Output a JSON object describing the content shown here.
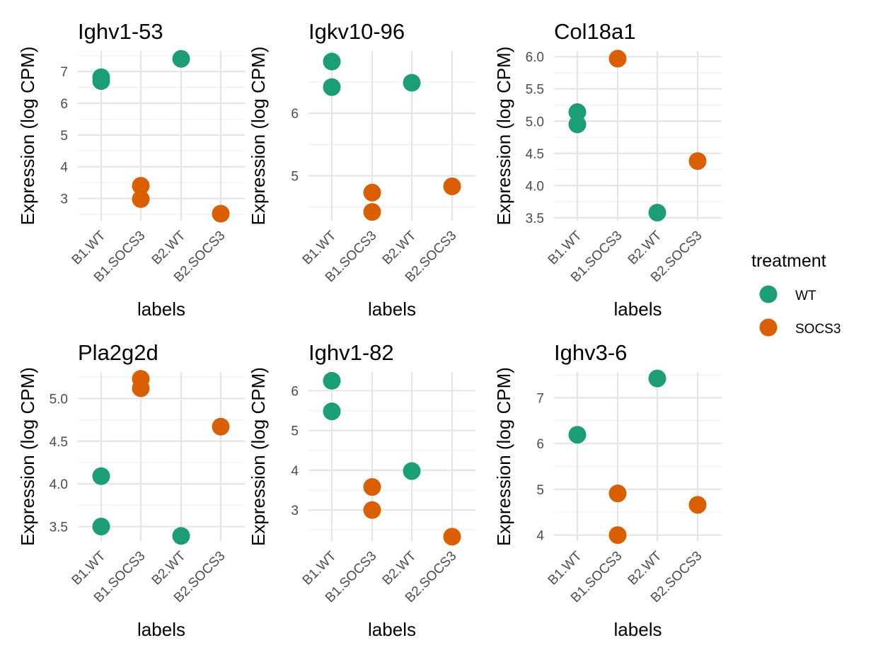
{
  "chart_data": [
    {
      "type": "scatter",
      "title": "Ighv1-53",
      "xlabel": "labels",
      "ylabel": "Expression (log CPM)",
      "categories": [
        "B1.WT",
        "B1.SOCS3",
        "B2.WT",
        "B2.SOCS3"
      ],
      "ylim": [
        2.3,
        7.65
      ],
      "yticks": [
        3,
        4,
        5,
        6,
        7
      ],
      "yticklabels": [
        "3",
        "4",
        "5",
        "6",
        "7"
      ],
      "points": [
        {
          "x": "B1.WT",
          "y": 6.82,
          "treatment": "WT"
        },
        {
          "x": "B1.WT",
          "y": 6.7,
          "treatment": "WT"
        },
        {
          "x": "B1.SOCS3",
          "y": 3.4,
          "treatment": "SOCS3"
        },
        {
          "x": "B1.SOCS3",
          "y": 2.98,
          "treatment": "SOCS3"
        },
        {
          "x": "B2.WT",
          "y": 7.4,
          "treatment": "WT"
        },
        {
          "x": "B2.SOCS3",
          "y": 2.52,
          "treatment": "SOCS3"
        }
      ]
    },
    {
      "type": "scatter",
      "title": "Igkv10-96",
      "xlabel": "labels",
      "ylabel": "Expression (log CPM)",
      "categories": [
        "B1.WT",
        "B1.SOCS3",
        "B2.WT",
        "B2.SOCS3"
      ],
      "ylim": [
        4.28,
        7.0
      ],
      "yticks": [
        5,
        6
      ],
      "yticklabels": [
        "5",
        "6"
      ],
      "points": [
        {
          "x": "B1.WT",
          "y": 6.83,
          "treatment": "WT"
        },
        {
          "x": "B1.WT",
          "y": 6.42,
          "treatment": "WT"
        },
        {
          "x": "B1.SOCS3",
          "y": 4.73,
          "treatment": "SOCS3"
        },
        {
          "x": "B1.SOCS3",
          "y": 4.42,
          "treatment": "SOCS3"
        },
        {
          "x": "B2.WT",
          "y": 6.49,
          "treatment": "WT"
        },
        {
          "x": "B2.SOCS3",
          "y": 4.83,
          "treatment": "SOCS3"
        }
      ]
    },
    {
      "type": "scatter",
      "title": "Col18a1",
      "xlabel": "labels",
      "ylabel": "Expression (log CPM)",
      "categories": [
        "B1.WT",
        "B1.SOCS3",
        "B2.WT",
        "B2.SOCS3"
      ],
      "ylim": [
        3.455,
        6.09
      ],
      "yticks": [
        3.5,
        4.0,
        4.5,
        5.0,
        5.5,
        6.0
      ],
      "yticklabels": [
        "3.5",
        "4.0",
        "4.5",
        "5.0",
        "5.5",
        "6.0"
      ],
      "points": [
        {
          "x": "B1.WT",
          "y": 5.14,
          "treatment": "WT"
        },
        {
          "x": "B1.WT",
          "y": 4.95,
          "treatment": "WT"
        },
        {
          "x": "B1.SOCS3",
          "y": 5.97,
          "treatment": "SOCS3"
        },
        {
          "x": "B2.WT",
          "y": 3.58,
          "treatment": "WT"
        },
        {
          "x": "B2.SOCS3",
          "y": 4.38,
          "treatment": "SOCS3"
        }
      ]
    },
    {
      "type": "scatter",
      "title": "Pla2g2d",
      "xlabel": "labels",
      "ylabel": "Expression (log CPM)",
      "categories": [
        "B1.WT",
        "B1.SOCS3",
        "B2.WT",
        "B2.SOCS3"
      ],
      "ylim": [
        3.33,
        5.31
      ],
      "yticks": [
        3.5,
        4.0,
        4.5,
        5.0
      ],
      "yticklabels": [
        "3.5",
        "4.0",
        "4.5",
        "5.0"
      ],
      "points": [
        {
          "x": "B1.WT",
          "y": 4.09,
          "treatment": "WT"
        },
        {
          "x": "B1.WT",
          "y": 3.5,
          "treatment": "WT"
        },
        {
          "x": "B1.SOCS3",
          "y": 5.23,
          "treatment": "SOCS3"
        },
        {
          "x": "B1.SOCS3",
          "y": 5.12,
          "treatment": "SOCS3"
        },
        {
          "x": "B2.WT",
          "y": 3.39,
          "treatment": "WT"
        },
        {
          "x": "B2.SOCS3",
          "y": 4.67,
          "treatment": "SOCS3"
        }
      ]
    },
    {
      "type": "scatter",
      "title": "Ighv1-82",
      "xlabel": "labels",
      "ylabel": "Expression (log CPM)",
      "categories": [
        "B1.WT",
        "B1.SOCS3",
        "B2.WT",
        "B2.SOCS3"
      ],
      "ylim": [
        2.22,
        6.47
      ],
      "yticks": [
        3,
        4,
        5,
        6
      ],
      "yticklabels": [
        "3",
        "4",
        "5",
        "6"
      ],
      "points": [
        {
          "x": "B1.WT",
          "y": 6.25,
          "treatment": "WT"
        },
        {
          "x": "B1.WT",
          "y": 5.48,
          "treatment": "WT"
        },
        {
          "x": "B1.SOCS3",
          "y": 3.58,
          "treatment": "SOCS3"
        },
        {
          "x": "B1.SOCS3",
          "y": 3.0,
          "treatment": "SOCS3"
        },
        {
          "x": "B2.WT",
          "y": 3.98,
          "treatment": "WT"
        },
        {
          "x": "B2.SOCS3",
          "y": 2.33,
          "treatment": "SOCS3"
        }
      ]
    },
    {
      "type": "scatter",
      "title": "Ighv3-6",
      "xlabel": "labels",
      "ylabel": "Expression (log CPM)",
      "categories": [
        "B1.WT",
        "B1.SOCS3",
        "B2.WT",
        "B2.SOCS3"
      ],
      "ylim": [
        3.87,
        7.56
      ],
      "yticks": [
        4,
        5,
        6,
        7
      ],
      "yticklabels": [
        "4",
        "5",
        "6",
        "7"
      ],
      "points": [
        {
          "x": "B1.WT",
          "y": 6.19,
          "treatment": "WT"
        },
        {
          "x": "B1.SOCS3",
          "y": 4.91,
          "treatment": "SOCS3"
        },
        {
          "x": "B1.SOCS3",
          "y": 4.0,
          "treatment": "SOCS3"
        },
        {
          "x": "B2.WT",
          "y": 7.42,
          "treatment": "WT"
        },
        {
          "x": "B2.SOCS3",
          "y": 4.66,
          "treatment": "SOCS3"
        }
      ]
    }
  ],
  "legend": {
    "title": "treatment",
    "position": "right",
    "items": [
      {
        "label": "WT",
        "color": "#1b9e77"
      },
      {
        "label": "SOCS3",
        "color": "#d95f02"
      }
    ]
  },
  "colors": {
    "WT": "#1b9e77",
    "SOCS3": "#d95f02"
  }
}
